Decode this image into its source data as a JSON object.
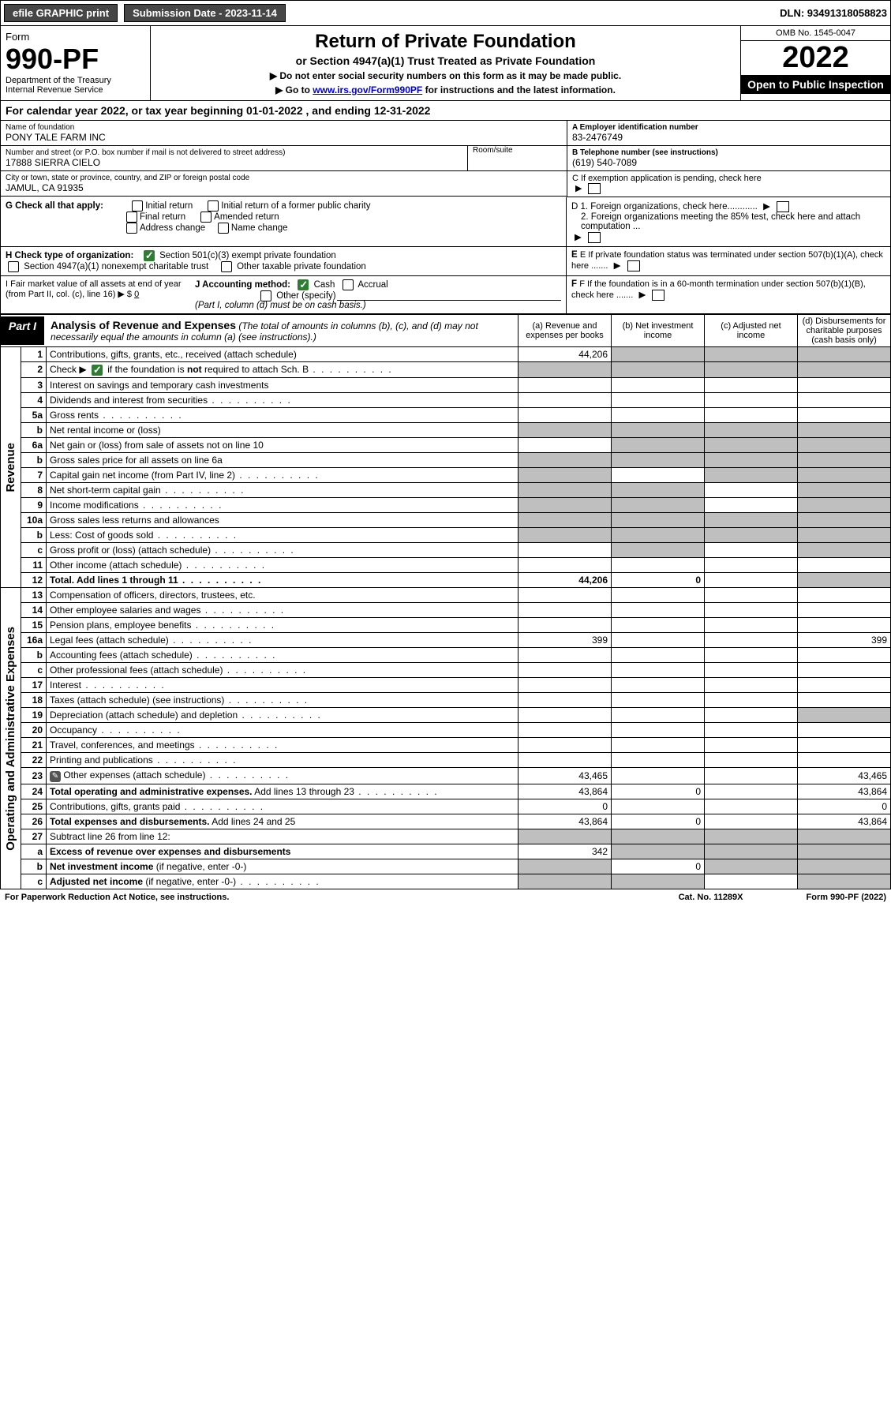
{
  "top": {
    "efile": "efile GRAPHIC print",
    "submission_label": "Submission Date - 2023-11-14",
    "dln": "DLN: 93491318058823"
  },
  "header": {
    "form_word": "Form",
    "form_no": "990-PF",
    "dept": "Department of the Treasury",
    "irs": "Internal Revenue Service",
    "title": "Return of Private Foundation",
    "sub1": "or Section 4947(a)(1) Trust Treated as Private Foundation",
    "sub2a": "▶ Do not enter social security numbers on this form as it may be made public.",
    "sub2b_pre": "▶ Go to ",
    "sub2b_link": "www.irs.gov/Form990PF",
    "sub2b_post": " for instructions and the latest information.",
    "omb": "OMB No. 1545-0047",
    "year": "2022",
    "open": "Open to Public Inspection"
  },
  "calyear": "For calendar year 2022, or tax year beginning 01-01-2022              , and ending 12-31-2022",
  "info": {
    "name_lbl": "Name of foundation",
    "name_val": "PONY TALE FARM INC",
    "addr_lbl": "Number and street (or P.O. box number if mail is not delivered to street address)",
    "addr_val": "17888 SIERRA CIELO",
    "room_lbl": "Room/suite",
    "city_lbl": "City or town, state or province, country, and ZIP or foreign postal code",
    "city_val": "JAMUL, CA  91935",
    "ein_lbl": "A Employer identification number",
    "ein_val": "83-2476749",
    "tel_lbl": "B Telephone number (see instructions)",
    "tel_val": "(619) 540-7089",
    "c_lbl": "C If exemption application is pending, check here",
    "g_lbl": "G Check all that apply:",
    "g_opts": [
      "Initial return",
      "Initial return of a former public charity",
      "Final return",
      "Amended return",
      "Address change",
      "Name change"
    ],
    "d1": "D 1. Foreign organizations, check here............",
    "d2": "2. Foreign organizations meeting the 85% test, check here and attach computation ...",
    "h_lbl": "H Check type of organization:",
    "h_1": "Section 501(c)(3) exempt private foundation",
    "h_2": "Section 4947(a)(1) nonexempt charitable trust",
    "h_3": "Other taxable private foundation",
    "e_lbl": "E If private foundation status was terminated under section 507(b)(1)(A), check here .......",
    "i_lbl": "I Fair market value of all assets at end of year (from Part II, col. (c), line 16) ▶ $",
    "i_val": "0",
    "j_lbl": "J Accounting method:",
    "j_cash": "Cash",
    "j_accr": "Accrual",
    "j_other": "Other (specify)",
    "j_note": "(Part I, column (d) must be on cash basis.)",
    "f_lbl": "F If the foundation is in a 60-month termination under section 507(b)(1)(B), check here ......."
  },
  "part1": {
    "tag": "Part I",
    "title": "Analysis of Revenue and Expenses",
    "note": "(The total of amounts in columns (b), (c), and (d) may not necessarily equal the amounts in column (a) (see instructions).)",
    "col_a": "(a)   Revenue and expenses per books",
    "col_b": "(b)   Net investment income",
    "col_c": "(c)   Adjusted net income",
    "col_d": "(d)   Disbursements for charitable purposes (cash basis only)",
    "vtab_rev": "Revenue",
    "vtab_exp": "Operating and Administrative Expenses"
  },
  "rows": [
    {
      "n": "1",
      "t": "Contributions, gifts, grants, etc., received (attach schedule)",
      "a": "44,206",
      "bgrey": [
        "b",
        "c",
        "d"
      ]
    },
    {
      "n": "2",
      "t": "Check ▶ ☑ if the foundation is <b>not</b> required to attach Sch. B",
      "dots": true,
      "bgrey": [
        "a",
        "b",
        "c",
        "d"
      ]
    },
    {
      "n": "3",
      "t": "Interest on savings and temporary cash investments"
    },
    {
      "n": "4",
      "t": "Dividends and interest from securities",
      "dots": true
    },
    {
      "n": "5a",
      "t": "Gross rents",
      "dots": true
    },
    {
      "n": "b",
      "t": "Net rental income or (loss)",
      "bgrey": [
        "a",
        "b",
        "c",
        "d"
      ]
    },
    {
      "n": "6a",
      "t": "Net gain or (loss) from sale of assets not on line 10",
      "bgrey": [
        "b",
        "c",
        "d"
      ]
    },
    {
      "n": "b",
      "t": "Gross sales price for all assets on line 6a",
      "bgrey": [
        "a",
        "b",
        "c",
        "d"
      ]
    },
    {
      "n": "7",
      "t": "Capital gain net income (from Part IV, line 2)",
      "dots": true,
      "bgrey": [
        "a",
        "c",
        "d"
      ]
    },
    {
      "n": "8",
      "t": "Net short-term capital gain",
      "dots": true,
      "bgrey": [
        "a",
        "b",
        "d"
      ]
    },
    {
      "n": "9",
      "t": "Income modifications",
      "dots": true,
      "bgrey": [
        "a",
        "b",
        "d"
      ]
    },
    {
      "n": "10a",
      "t": "Gross sales less returns and allowances",
      "bgrey": [
        "a",
        "b",
        "c",
        "d"
      ]
    },
    {
      "n": "b",
      "t": "Less: Cost of goods sold",
      "dots": true,
      "bgrey": [
        "a",
        "b",
        "c",
        "d"
      ]
    },
    {
      "n": "c",
      "t": "Gross profit or (loss) (attach schedule)",
      "dots": true,
      "bgrey": [
        "b",
        "d"
      ]
    },
    {
      "n": "11",
      "t": "Other income (attach schedule)",
      "dots": true
    },
    {
      "n": "12",
      "t": "<b>Total.</b> Add lines 1 through 11",
      "dots": true,
      "a": "44,206",
      "b": "0",
      "bgrey": [
        "d"
      ],
      "bold": true
    },
    {
      "n": "13",
      "t": "Compensation of officers, directors, trustees, etc."
    },
    {
      "n": "14",
      "t": "Other employee salaries and wages",
      "dots": true
    },
    {
      "n": "15",
      "t": "Pension plans, employee benefits",
      "dots": true
    },
    {
      "n": "16a",
      "t": "Legal fees (attach schedule)",
      "dots": true,
      "a": "399",
      "d": "399"
    },
    {
      "n": "b",
      "t": "Accounting fees (attach schedule)",
      "dots": true
    },
    {
      "n": "c",
      "t": "Other professional fees (attach schedule)",
      "dots": true
    },
    {
      "n": "17",
      "t": "Interest",
      "dots": true
    },
    {
      "n": "18",
      "t": "Taxes (attach schedule) (see instructions)",
      "dots": true
    },
    {
      "n": "19",
      "t": "Depreciation (attach schedule) and depletion",
      "dots": true,
      "bgrey": [
        "d"
      ]
    },
    {
      "n": "20",
      "t": "Occupancy",
      "dots": true
    },
    {
      "n": "21",
      "t": "Travel, conferences, and meetings",
      "dots": true
    },
    {
      "n": "22",
      "t": "Printing and publications",
      "dots": true
    },
    {
      "n": "23",
      "t": "Other expenses (attach schedule)",
      "dots": true,
      "a": "43,465",
      "d": "43,465",
      "pencil": true
    },
    {
      "n": "24",
      "t": "<b>Total operating and administrative expenses.</b> Add lines 13 through 23",
      "dots": true,
      "a": "43,864",
      "b": "0",
      "d": "43,864"
    },
    {
      "n": "25",
      "t": "Contributions, gifts, grants paid",
      "dots": true,
      "a": "0",
      "d": "0"
    },
    {
      "n": "26",
      "t": "<b>Total expenses and disbursements.</b> Add lines 24 and 25",
      "a": "43,864",
      "b": "0",
      "d": "43,864"
    },
    {
      "n": "27",
      "t": "Subtract line 26 from line 12:",
      "bgrey": [
        "a",
        "b",
        "c",
        "d"
      ]
    },
    {
      "n": "a",
      "t": "<b>Excess of revenue over expenses and disbursements</b>",
      "a": "342",
      "bgrey": [
        "b",
        "c",
        "d"
      ]
    },
    {
      "n": "b",
      "t": "<b>Net investment income</b> (if negative, enter -0-)",
      "b": "0",
      "bgrey": [
        "a",
        "c",
        "d"
      ]
    },
    {
      "n": "c",
      "t": "<b>Adjusted net income</b> (if negative, enter -0-)",
      "dots": true,
      "bgrey": [
        "a",
        "b",
        "d"
      ]
    }
  ],
  "footer": {
    "l": "For Paperwork Reduction Act Notice, see instructions.",
    "c": "Cat. No. 11289X",
    "r": "Form 990-PF (2022)"
  }
}
